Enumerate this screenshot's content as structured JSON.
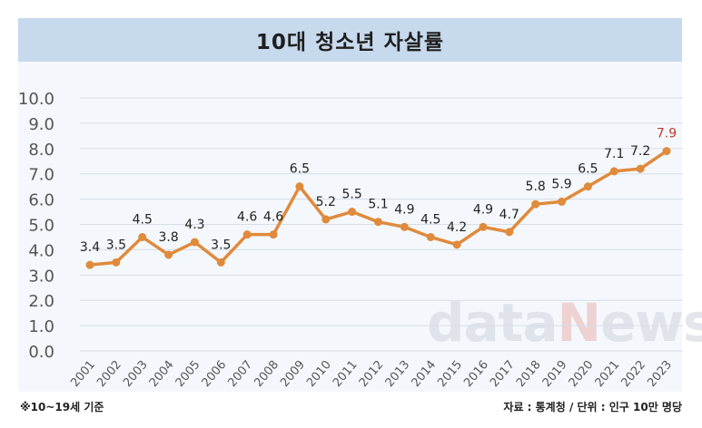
{
  "chart_data": {
    "type": "line",
    "title": "10대 청소년 자살률",
    "categories": [
      "2001",
      "2002",
      "2003",
      "2004",
      "2005",
      "2006",
      "2007",
      "2008",
      "2009",
      "2010",
      "2011",
      "2012",
      "2013",
      "2014",
      "2015",
      "2016",
      "2017",
      "2018",
      "2019",
      "2020",
      "2021",
      "2022",
      "2023"
    ],
    "values": [
      3.4,
      3.5,
      4.5,
      3.8,
      4.3,
      3.5,
      4.6,
      4.6,
      6.5,
      5.2,
      5.5,
      5.1,
      4.9,
      4.5,
      4.2,
      4.9,
      4.7,
      5.8,
      5.9,
      6.5,
      7.1,
      7.2,
      7.9
    ],
    "value_labels": [
      "3.4",
      "3.5",
      "4.5",
      "3.8",
      "4.3",
      "3.5",
      "4.6",
      "4.6",
      "6.5",
      "5.2",
      "5.5",
      "5.1",
      "4.9",
      "4.5",
      "4.2",
      "4.9",
      "4.7",
      "5.8",
      "5.9",
      "6.5",
      "7.1",
      "7.2",
      "7.9"
    ],
    "yticks": [
      "0.0",
      "1.0",
      "2.0",
      "3.0",
      "4.0",
      "5.0",
      "6.0",
      "7.0",
      "8.0",
      "9.0",
      "10.0"
    ],
    "ylim": [
      0,
      10
    ],
    "xlabel": "",
    "ylabel": "",
    "grid": true,
    "colors": {
      "line": "#e08a3c",
      "marker": "#e08a3c",
      "label": "#222222",
      "highlight_label": "#c0392b",
      "grid": "#d6dde6",
      "axis_text": "#555555"
    }
  },
  "footer": {
    "note": "※10~19세 기준",
    "source": "자료 : 통계청 / 단위 : 인구 10만 명당"
  },
  "watermark": {
    "part1": "data",
    "part2": "N",
    "part3": "ews"
  }
}
